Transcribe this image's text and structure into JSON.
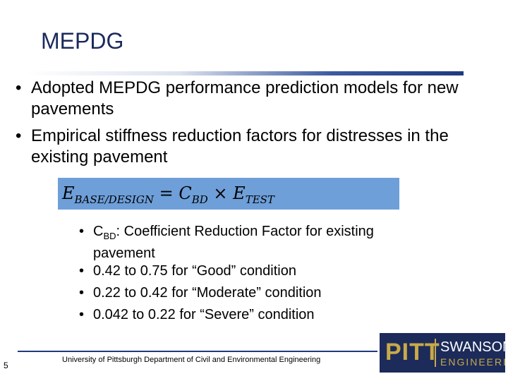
{
  "header": {
    "title": "MEPDG"
  },
  "bullets": [
    "Adopted MEPDG performance prediction models for new pavements",
    "Empirical stiffness reduction factors for distresses in the existing pavement"
  ],
  "formula": {
    "lhs": "E",
    "lhs_sub": "BASE/DESIGN",
    "equals": "=",
    "c": "C",
    "c_sub": "BD",
    "times": "×",
    "e": "E",
    "e_sub": "TEST"
  },
  "sub_bullets": {
    "first": {
      "symbol": "C",
      "subscript": "BD",
      "text": ": Coefficient Reduction Factor for existing pavement"
    },
    "items": [
      "0.42 to 0.75 for “Good” condition",
      "0.22 to 0.42 for “Moderate” condition",
      "0.042 to 0.22 for “Severe” condition"
    ]
  },
  "footer": {
    "text": "University of Pittsburgh Department of Civil and Environmental Engineering",
    "page": "5"
  },
  "logo": {
    "left": "PITT",
    "right_top": "SWANSON",
    "right_bottom": "ENGINEERING"
  }
}
